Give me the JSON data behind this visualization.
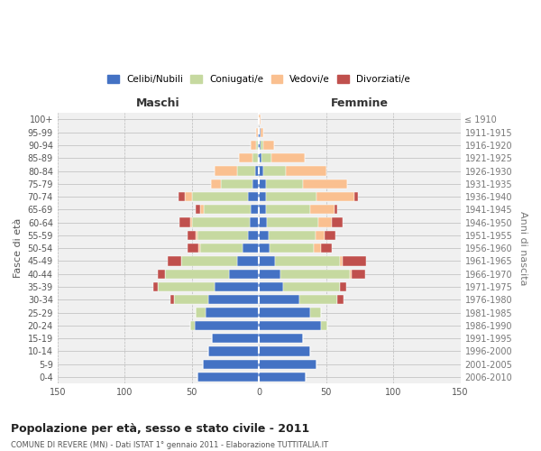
{
  "age_groups": [
    "0-4",
    "5-9",
    "10-14",
    "15-19",
    "20-24",
    "25-29",
    "30-34",
    "35-39",
    "40-44",
    "45-49",
    "50-54",
    "55-59",
    "60-64",
    "65-69",
    "70-74",
    "75-79",
    "80-84",
    "85-89",
    "90-94",
    "95-99",
    "100+"
  ],
  "birth_years": [
    "2006-2010",
    "2001-2005",
    "1996-2000",
    "1991-1995",
    "1986-1990",
    "1981-1985",
    "1976-1980",
    "1971-1975",
    "1966-1970",
    "1961-1965",
    "1956-1960",
    "1951-1955",
    "1946-1950",
    "1941-1945",
    "1936-1940",
    "1931-1935",
    "1926-1930",
    "1921-1925",
    "1916-1920",
    "1911-1915",
    "≤ 1910"
  ],
  "colors": {
    "celibe": "#4472C4",
    "coniugato": "#C6D9A0",
    "vedovo": "#FAC090",
    "divorziato": "#C0504D"
  },
  "maschi": {
    "celibe": [
      46,
      42,
      38,
      35,
      48,
      40,
      38,
      33,
      22,
      16,
      12,
      8,
      7,
      6,
      8,
      5,
      3,
      1,
      1,
      1,
      0
    ],
    "coniugato": [
      0,
      0,
      0,
      0,
      3,
      7,
      25,
      42,
      48,
      42,
      32,
      38,
      43,
      35,
      42,
      23,
      13,
      4,
      1,
      0,
      0
    ],
    "vedovo": [
      0,
      0,
      0,
      0,
      0,
      0,
      0,
      0,
      0,
      0,
      1,
      1,
      1,
      3,
      5,
      8,
      17,
      10,
      4,
      1,
      0
    ],
    "divorziato": [
      0,
      0,
      0,
      0,
      0,
      0,
      3,
      4,
      5,
      10,
      8,
      6,
      8,
      3,
      5,
      0,
      0,
      0,
      0,
      0,
      0
    ]
  },
  "femmine": {
    "nubile": [
      35,
      43,
      38,
      33,
      46,
      38,
      30,
      18,
      16,
      12,
      8,
      7,
      6,
      5,
      5,
      5,
      3,
      2,
      1,
      1,
      0
    ],
    "coniugata": [
      0,
      0,
      0,
      0,
      5,
      8,
      28,
      42,
      52,
      48,
      33,
      35,
      38,
      33,
      38,
      28,
      17,
      7,
      2,
      0,
      0
    ],
    "vedova": [
      0,
      0,
      0,
      0,
      0,
      0,
      0,
      0,
      1,
      2,
      5,
      7,
      10,
      18,
      28,
      33,
      30,
      25,
      8,
      2,
      1
    ],
    "divorziata": [
      0,
      0,
      0,
      0,
      0,
      0,
      5,
      5,
      10,
      18,
      8,
      8,
      8,
      2,
      3,
      0,
      0,
      0,
      0,
      0,
      0
    ]
  },
  "xlim": 150,
  "title": "Popolazione per età, sesso e stato civile - 2011",
  "subtitle": "COMUNE DI REVERE (MN) - Dati ISTAT 1° gennaio 2011 - Elaborazione TUTTITALIA.IT",
  "ylabel_left": "Fasce di età",
  "ylabel_right": "Anni di nascita",
  "xlabel_left": "Maschi",
  "xlabel_right": "Femmine",
  "bg_color": "#f0f0f0",
  "grid_color": "#cccccc"
}
